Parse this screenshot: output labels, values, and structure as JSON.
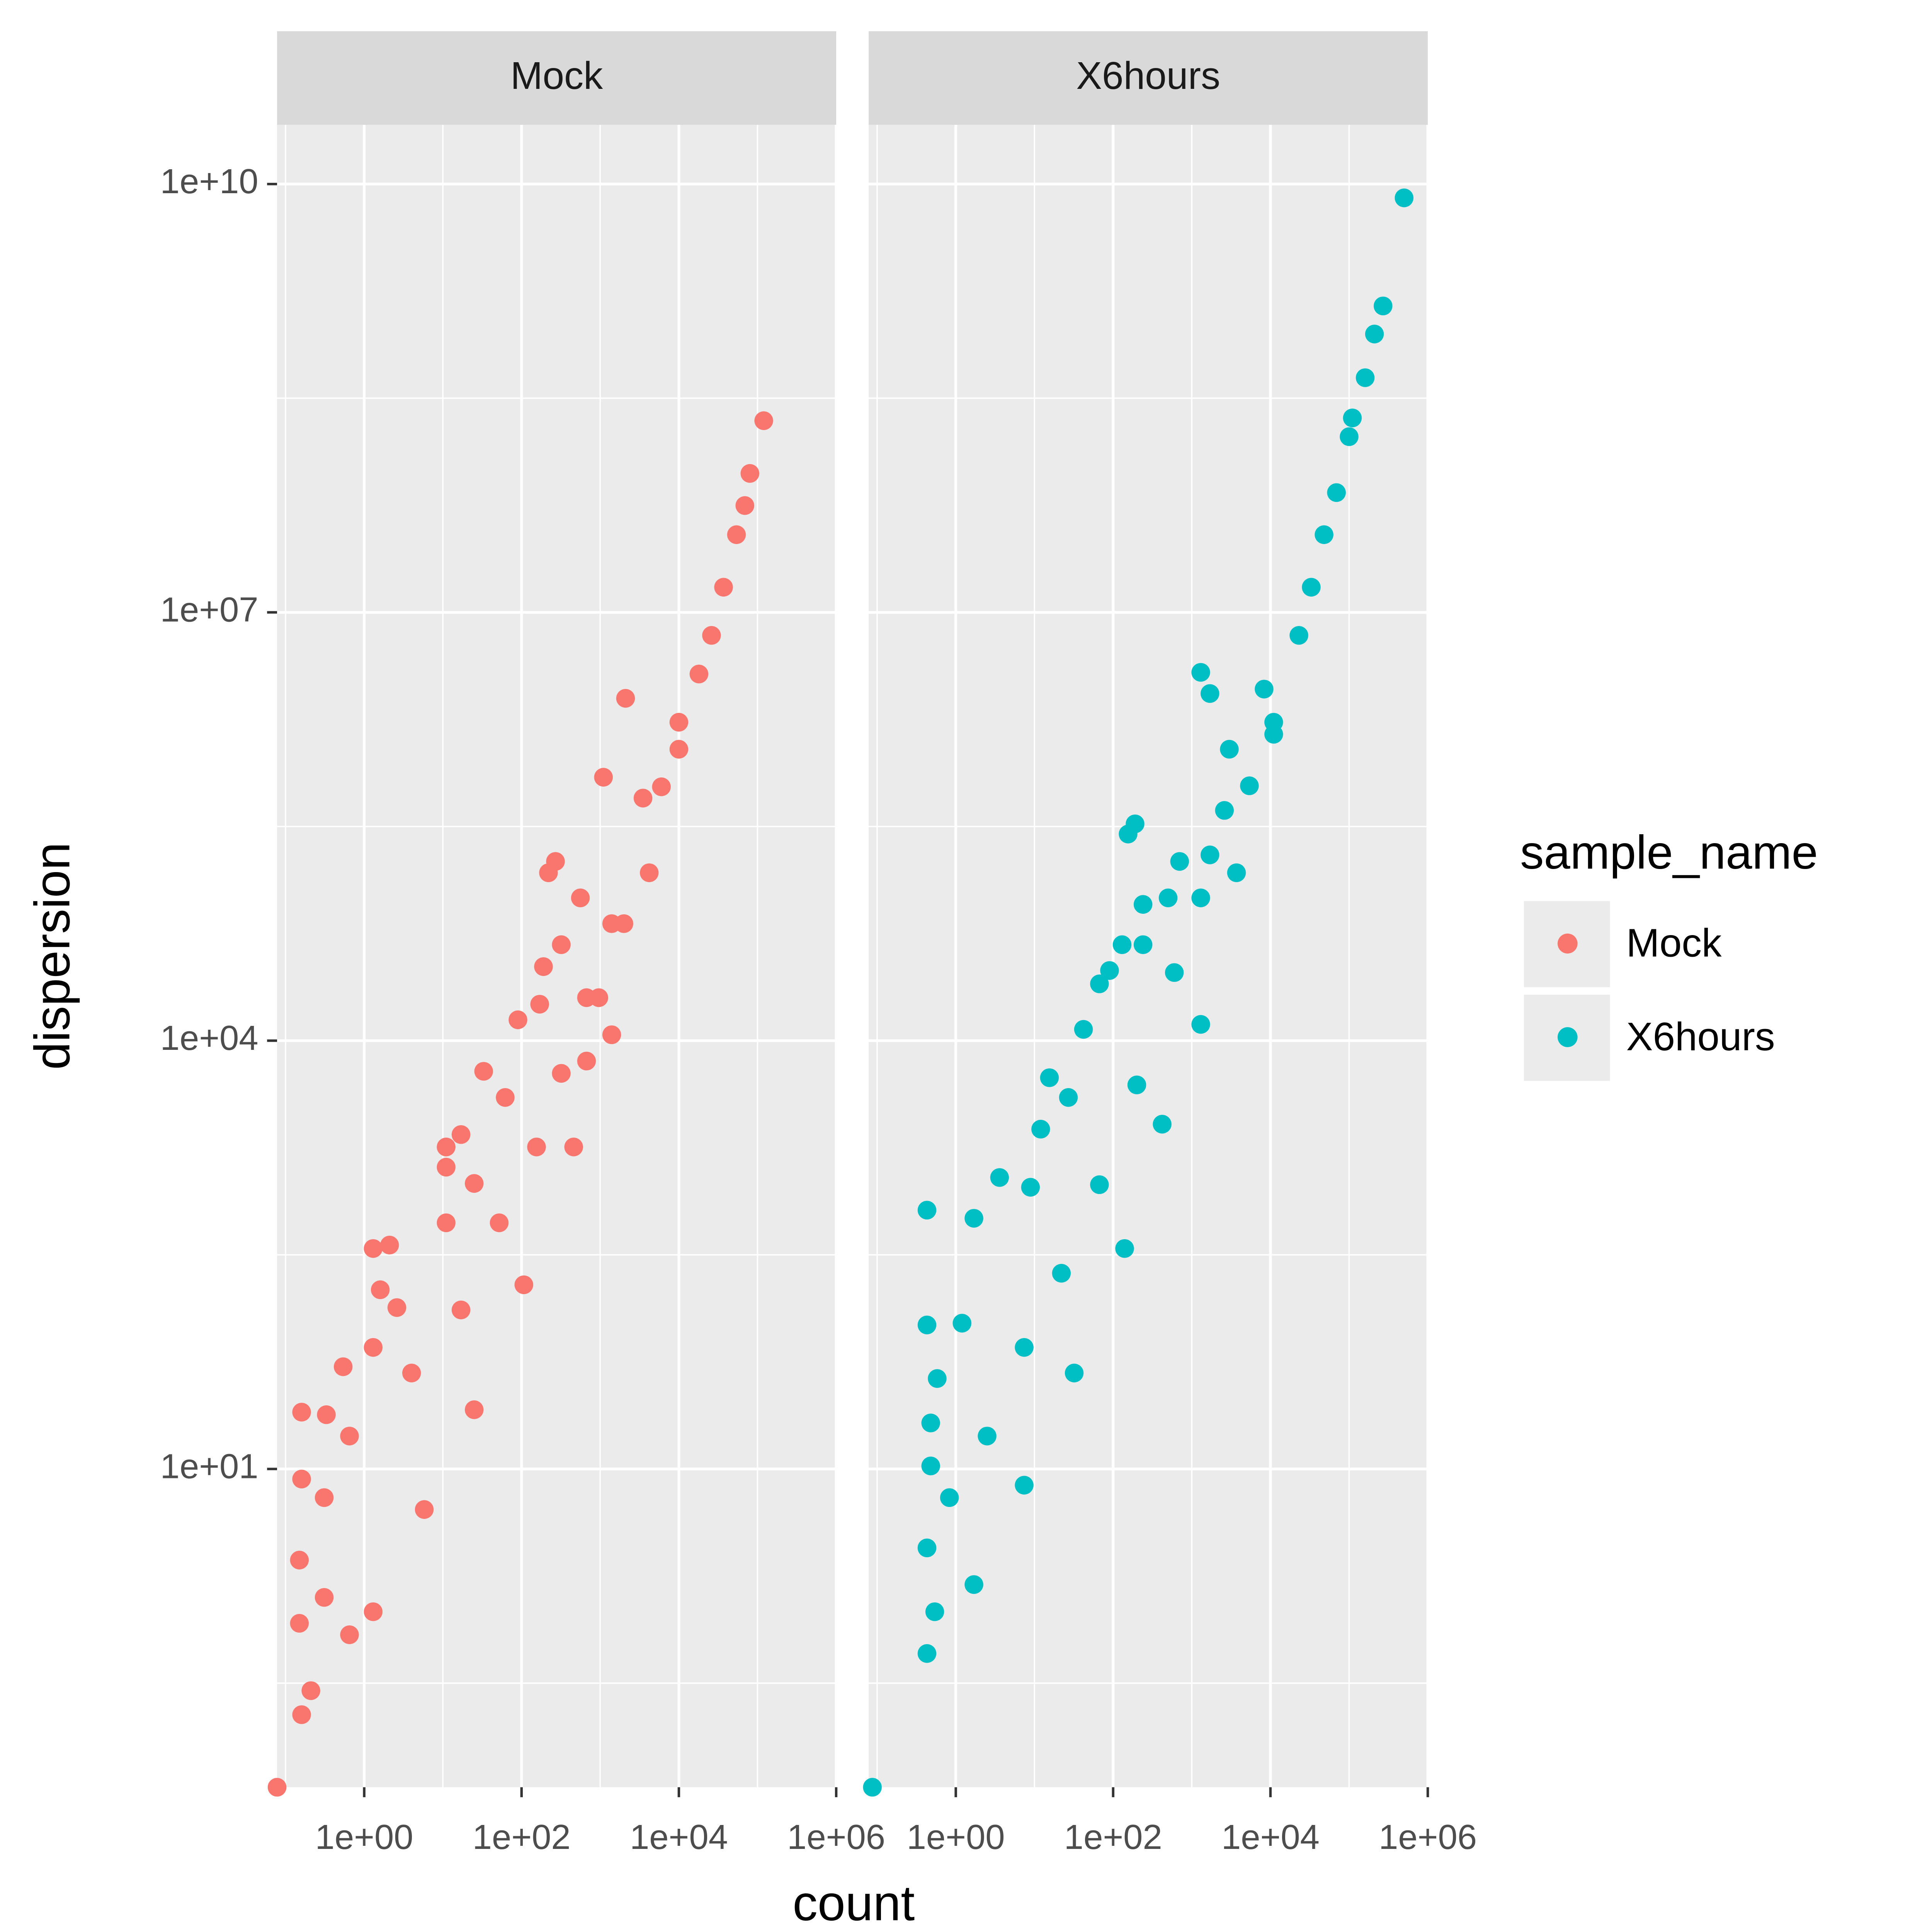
{
  "chart_data": {
    "type": "scatter",
    "x_label": "count",
    "y_label": "dispersion",
    "legend_title": "sample_name",
    "legend": "right",
    "log_x": true,
    "log_y": true,
    "grid": true,
    "xlim": [
      0.078,
      1000000
    ],
    "ylim": [
      0.059,
      26000000000
    ],
    "xticks": [
      {
        "value": 1,
        "label": "1e+00"
      },
      {
        "value": 100,
        "label": "1e+02"
      },
      {
        "value": 10000,
        "label": "1e+04"
      },
      {
        "value": 1000000,
        "label": "1e+06"
      }
    ],
    "yticks": [
      {
        "value": 10,
        "label": "1e+01"
      },
      {
        "value": 10000,
        "label": "1e+04"
      },
      {
        "value": 10000000,
        "label": "1e+07"
      },
      {
        "value": 10000000000,
        "label": "1e+10"
      }
    ],
    "series": [
      {
        "name": "Mock",
        "color": "#f8766d",
        "x": [
          120000,
          80000,
          69000,
          54000,
          37000,
          26000,
          18000,
          10000,
          6000,
          2100,
          1100,
          3500,
          270,
          220,
          560,
          1400,
          320,
          190,
          170,
          90,
          960,
          670,
          33,
          62,
          17,
          11,
          11,
          25,
          11,
          2.1,
          1.6,
          2.6,
          1.3,
          0.54,
          0.16,
          0.33,
          0.16,
          0.15,
          0.15,
          0.16,
          0.21,
          0.078,
          1.3,
          1.3,
          5.8,
          25,
          107,
          460,
          1400,
          4200,
          10000,
          4,
          17,
          52,
          155,
          320,
          670,
          2000,
          0.31,
          0.31,
          0.65,
          0.65
        ],
        "values": [
          220000000,
          94000000,
          56000000,
          35000000,
          15000000,
          6900000,
          3700000,
          1700000,
          600000,
          2500000,
          700000,
          500000,
          180000,
          150000,
          100000,
          66000,
          47000,
          33000,
          18000,
          14000,
          20000,
          7200,
          6100,
          4000,
          2200,
          1800,
          1300,
          1000,
          530,
          370,
          180,
          135,
          71,
          52,
          25,
          24,
          8.5,
          2.3,
          0.83,
          0.19,
          0.28,
          0.059,
          350,
          1.0,
          5.2,
          26,
          195,
          1800,
          11000,
          150000,
          1100000,
          47,
          130,
          530,
          1800,
          5900,
          20000,
          66000,
          6.3,
          1.26,
          17,
          0.69
        ]
      },
      {
        "name": "X6hours",
        "color": "#00bfc4",
        "x": [
          500000,
          270000,
          210000,
          160000,
          110000,
          100000,
          69000,
          48000,
          33000,
          23000,
          1300,
          1700,
          8300,
          3000,
          11000,
          5400,
          190,
          155,
          700,
          1700,
          500,
          240,
          130,
          240,
          90,
          67,
          42,
          15.5,
          27,
          12,
          3.6,
          8.9,
          0.43,
          1.7,
          0.43,
          1.2,
          0.58,
          0.48,
          0.48,
          0.43,
          0.43,
          0.54,
          0.087,
          1.7,
          7.4,
          32,
          140,
          420,
          1300,
          3700,
          11000,
          2.5,
          7.4,
          22,
          67,
          200,
          600,
          1300,
          2600,
          0.83
        ],
        "values": [
          8000000000,
          1400000000,
          890000000,
          440000000,
          230000000,
          170000000,
          69000000,
          35000000,
          15000000,
          6900000,
          3800000,
          2700000,
          2900000,
          1100000,
          1700000,
          610000,
          330000,
          280000,
          180000,
          200000,
          100000,
          90000,
          47000,
          47000,
          31000,
          25000,
          12000,
          5500,
          4000,
          2400,
          1100,
          940,
          650,
          570,
          102,
          105,
          43,
          21,
          10.5,
          2.8,
          0.51,
          1.0,
          0.059,
          1.55,
          7.7,
          47,
          350,
          2600,
          13000,
          150000,
          1400000,
          17,
          71,
          235,
          980,
          4900,
          30000,
          100000,
          410000,
          6.3
        ]
      }
    ]
  }
}
